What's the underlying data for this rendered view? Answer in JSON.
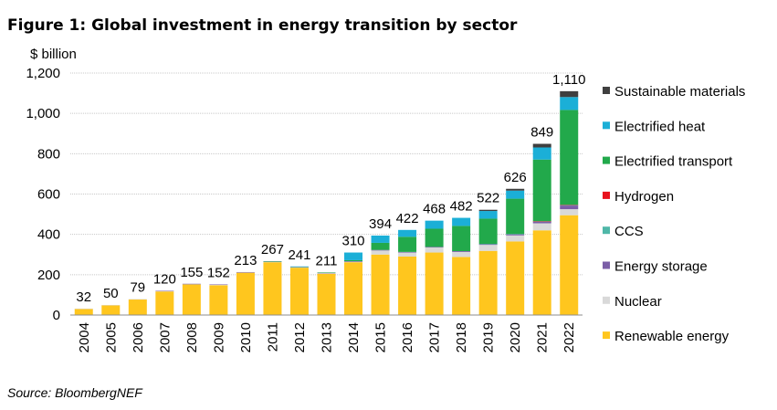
{
  "figure": {
    "title": "Figure 1: Global investment in energy transition by sector",
    "source": "Source: BloombergNEF"
  },
  "chart_data": {
    "type": "bar",
    "stacked": true,
    "ylabel": "$ billion",
    "ylim": [
      0,
      1200
    ],
    "yticks": [
      0,
      200,
      400,
      600,
      800,
      1000,
      1200
    ],
    "ytick_labels": [
      "0",
      "200",
      "400",
      "600",
      "800",
      "1,000",
      "1,200"
    ],
    "grid": true,
    "legend_position": "right",
    "categories": [
      "2004",
      "2005",
      "2006",
      "2007",
      "2008",
      "2009",
      "2010",
      "2011",
      "2012",
      "2013",
      "2014",
      "2015",
      "2016",
      "2017",
      "2018",
      "2019",
      "2020",
      "2021",
      "2022"
    ],
    "totals": [
      32,
      50,
      79,
      120,
      155,
      152,
      213,
      267,
      241,
      211,
      310,
      394,
      422,
      468,
      482,
      522,
      626,
      849,
      1110
    ],
    "total_labels": [
      "32",
      "50",
      "79",
      "120",
      "155",
      "152",
      "213",
      "267",
      "241",
      "211",
      "310",
      "394",
      "422",
      "468",
      "482",
      "522",
      "626",
      "849",
      "1,110"
    ],
    "series": [
      {
        "name": "Renewable energy",
        "color": "#FFC61E",
        "values": [
          30,
          48,
          77,
          117,
          152,
          148,
          210,
          262,
          235,
          205,
          262,
          300,
          290,
          310,
          288,
          318,
          365,
          420,
          495
        ]
      },
      {
        "name": "Nuclear",
        "color": "#D9D9D9",
        "values": [
          2,
          2,
          2,
          2,
          2,
          2,
          2,
          2,
          2,
          2,
          2,
          20,
          20,
          25,
          25,
          30,
          30,
          35,
          30
        ]
      },
      {
        "name": "Energy storage",
        "color": "#7B5EA7",
        "values": [
          0,
          0,
          0,
          1,
          1,
          2,
          1,
          2,
          2,
          3,
          3,
          3,
          3,
          3,
          4,
          4,
          6,
          8,
          18
        ]
      },
      {
        "name": "CCS",
        "color": "#4FB7A8",
        "values": [
          0,
          0,
          0,
          0,
          0,
          0,
          0,
          0,
          0,
          0,
          0,
          0,
          0,
          0,
          0,
          1,
          1,
          2,
          3
        ]
      },
      {
        "name": "Hydrogen",
        "color": "#E8121E",
        "values": [
          0,
          0,
          0,
          0,
          0,
          0,
          0,
          0,
          0,
          0,
          0,
          0,
          0,
          0,
          0,
          0,
          0,
          1,
          1
        ]
      },
      {
        "name": "Electrified transport",
        "color": "#22A94B",
        "values": [
          0,
          0,
          0,
          0,
          0,
          0,
          0,
          1,
          1,
          1,
          5,
          35,
          75,
          90,
          125,
          125,
          175,
          305,
          470
        ]
      },
      {
        "name": "Electrified heat",
        "color": "#1BAFD7",
        "values": [
          0,
          0,
          0,
          0,
          0,
          0,
          0,
          0,
          1,
          0,
          38,
          36,
          34,
          40,
          40,
          38,
          40,
          60,
          64
        ]
      },
      {
        "name": "Sustainable materials",
        "color": "#3F3F3F",
        "values": [
          0,
          0,
          0,
          0,
          0,
          0,
          0,
          0,
          0,
          0,
          0,
          0,
          0,
          0,
          0,
          6,
          9,
          18,
          29
        ]
      }
    ]
  }
}
